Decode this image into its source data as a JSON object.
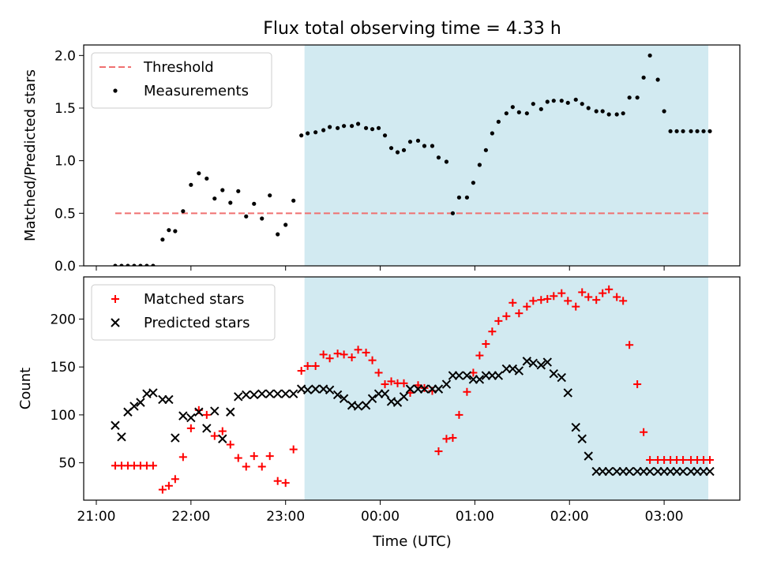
{
  "chart_data": {
    "type": "scatter",
    "title": "Flux total observing time = 4.33 h",
    "xlabel": "Time (UTC)",
    "x_ticks": [
      "21:00",
      "22:00",
      "23:00",
      "00:00",
      "01:00",
      "02:00",
      "03:00"
    ],
    "x_tick_hours": [
      21,
      22,
      23,
      24,
      25,
      26,
      27
    ],
    "xlim": [
      "20:52",
      "03:48"
    ],
    "shaded_region": {
      "start": "23:12",
      "end": "03:28",
      "color": "#add8e6"
    },
    "panels": [
      {
        "ylabel": "Matched/Predicted stars",
        "ylim": [
          0,
          2.1
        ],
        "y_ticks": [
          "0.0",
          "0.5",
          "1.0",
          "1.5",
          "2.0"
        ],
        "legend_position": "upper-left",
        "threshold": {
          "name": "Threshold",
          "value": 0.5,
          "start": "21:12",
          "end": "03:28",
          "color": "#f07070"
        },
        "series": [
          {
            "name": "Measurements",
            "marker": "dot",
            "color": "#000000",
            "x": [
              "21:12",
              "21:16",
              "21:20",
              "21:24",
              "21:28",
              "21:32",
              "21:36",
              "21:42",
              "21:46",
              "21:50",
              "21:55",
              "22:00",
              "22:05",
              "22:10",
              "22:15",
              "22:20",
              "22:25",
              "22:30",
              "22:35",
              "22:40",
              "22:45",
              "22:50",
              "22:55",
              "23:00",
              "23:05",
              "23:10",
              "23:14",
              "23:19",
              "23:24",
              "23:28",
              "23:33",
              "23:37",
              "23:42",
              "23:46",
              "23:51",
              "23:55",
              "23:59",
              "00:03",
              "00:07",
              "00:11",
              "00:15",
              "00:19",
              "00:24",
              "00:28",
              "00:33",
              "00:37",
              "00:42",
              "00:46",
              "00:50",
              "00:55",
              "00:59",
              "01:03",
              "01:07",
              "01:11",
              "01:15",
              "01:20",
              "01:24",
              "01:28",
              "01:33",
              "01:37",
              "01:42",
              "01:46",
              "01:50",
              "01:55",
              "01:59",
              "02:04",
              "02:08",
              "02:12",
              "02:17",
              "02:21",
              "02:25",
              "02:30",
              "02:34",
              "02:38",
              "02:43",
              "02:47",
              "02:51",
              "02:56",
              "03:00",
              "03:04",
              "03:08",
              "03:12",
              "03:17",
              "03:21",
              "03:25",
              "03:29"
            ],
            "y": [
              0.0,
              0.0,
              0.0,
              0.0,
              0.0,
              0.0,
              0.0,
              0.25,
              0.34,
              0.33,
              0.52,
              0.77,
              0.88,
              0.83,
              0.64,
              0.72,
              0.6,
              0.71,
              0.47,
              0.59,
              0.45,
              0.67,
              0.3,
              0.39,
              0.62,
              1.24,
              1.26,
              1.27,
              1.29,
              1.32,
              1.31,
              1.33,
              1.33,
              1.35,
              1.31,
              1.3,
              1.31,
              1.24,
              1.12,
              1.08,
              1.1,
              1.18,
              1.19,
              1.14,
              1.14,
              1.03,
              0.99,
              0.5,
              0.65,
              0.65,
              0.79,
              0.96,
              1.1,
              1.26,
              1.37,
              1.45,
              1.51,
              1.46,
              1.45,
              1.54,
              1.49,
              1.56,
              1.57,
              1.57,
              1.55,
              1.58,
              1.54,
              1.5,
              1.47,
              1.47,
              1.44,
              1.44,
              1.45,
              1.6,
              1.6,
              1.79,
              2.0,
              1.77,
              1.47,
              1.28,
              1.28,
              1.28,
              1.28,
              1.28,
              1.28,
              1.28
            ]
          }
        ]
      },
      {
        "ylabel": "Count",
        "ylim": [
          11,
          244
        ],
        "y_ticks": [
          "50",
          "100",
          "150",
          "200"
        ],
        "legend_position": "upper-left",
        "series": [
          {
            "name": "Matched stars",
            "marker": "plus",
            "color": "#ff0000",
            "x": [
              "21:12",
              "21:16",
              "21:20",
              "21:24",
              "21:28",
              "21:32",
              "21:36",
              "21:42",
              "21:46",
              "21:50",
              "21:55",
              "22:00",
              "22:05",
              "22:10",
              "22:15",
              "22:20",
              "22:25",
              "22:30",
              "22:35",
              "22:40",
              "22:45",
              "22:50",
              "22:55",
              "23:00",
              "23:05",
              "23:10",
              "23:14",
              "23:19",
              "23:24",
              "23:28",
              "23:33",
              "23:37",
              "23:42",
              "23:46",
              "23:51",
              "23:55",
              "23:59",
              "00:03",
              "00:07",
              "00:11",
              "00:15",
              "00:19",
              "00:24",
              "00:28",
              "00:33",
              "00:37",
              "00:42",
              "00:46",
              "00:50",
              "00:55",
              "00:59",
              "01:03",
              "01:07",
              "01:11",
              "01:15",
              "01:20",
              "01:24",
              "01:28",
              "01:33",
              "01:37",
              "01:42",
              "01:46",
              "01:50",
              "01:55",
              "01:59",
              "02:04",
              "02:08",
              "02:12",
              "02:17",
              "02:21",
              "02:25",
              "02:30",
              "02:34",
              "02:38",
              "02:43",
              "02:47",
              "02:51",
              "02:56",
              "03:00",
              "03:04",
              "03:08",
              "03:12",
              "03:17",
              "03:21",
              "03:25",
              "03:29"
            ],
            "y": [
              47,
              47,
              47,
              47,
              47,
              47,
              47,
              22,
              26,
              33,
              56,
              86,
              105,
              100,
              78,
              83,
              69,
              55,
              46,
              57,
              46,
              57,
              31,
              29,
              64,
              146,
              151,
              151,
              163,
              159,
              164,
              163,
              160,
              168,
              165,
              157,
              144,
              132,
              135,
              133,
              133,
              123,
              131,
              128,
              125,
              62,
              75,
              76,
              100,
              124,
              144,
              162,
              174,
              187,
              198,
              203,
              217,
              206,
              213,
              219,
              220,
              221,
              224,
              227,
              219,
              213,
              228,
              223,
              220,
              227,
              231,
              223,
              219,
              173,
              132,
              82,
              53,
              53,
              53,
              53,
              53,
              53,
              53,
              53,
              53,
              53
            ]
          },
          {
            "name": "Predicted stars",
            "marker": "x",
            "color": "#000000",
            "x": [
              "21:12",
              "21:16",
              "21:20",
              "21:24",
              "21:28",
              "21:32",
              "21:36",
              "21:42",
              "21:46",
              "21:50",
              "21:55",
              "22:00",
              "22:05",
              "22:10",
              "22:15",
              "22:20",
              "22:25",
              "22:30",
              "22:35",
              "22:40",
              "22:45",
              "22:50",
              "22:55",
              "23:00",
              "23:05",
              "23:10",
              "23:14",
              "23:19",
              "23:24",
              "23:28",
              "23:33",
              "23:37",
              "23:42",
              "23:46",
              "23:51",
              "23:55",
              "23:59",
              "00:03",
              "00:07",
              "00:11",
              "00:15",
              "00:19",
              "00:24",
              "00:28",
              "00:33",
              "00:37",
              "00:42",
              "00:46",
              "00:50",
              "00:55",
              "00:59",
              "01:03",
              "01:07",
              "01:11",
              "01:15",
              "01:20",
              "01:24",
              "01:28",
              "01:33",
              "01:37",
              "01:42",
              "01:46",
              "01:50",
              "01:55",
              "01:59",
              "02:04",
              "02:08",
              "02:12",
              "02:17",
              "02:21",
              "02:25",
              "02:30",
              "02:34",
              "02:38",
              "02:43",
              "02:47",
              "02:51",
              "02:56",
              "03:00",
              "03:04",
              "03:08",
              "03:12",
              "03:17",
              "03:21",
              "03:25",
              "03:29"
            ],
            "y": [
              89,
              77,
              103,
              109,
              113,
              122,
              123,
              116,
              116,
              76,
              99,
              97,
              103,
              86,
              104,
              75,
              103,
              119,
              121,
              121,
              122,
              122,
              122,
              122,
              122,
              127,
              126,
              127,
              127,
              126,
              121,
              117,
              110,
              109,
              110,
              117,
              122,
              122,
              114,
              113,
              119,
              127,
              127,
              127,
              127,
              127,
              132,
              141,
              141,
              141,
              137,
              137,
              141,
              141,
              141,
              148,
              148,
              146,
              156,
              154,
              152,
              155,
              143,
              139,
              123,
              87,
              75,
              57,
              41,
              41,
              41,
              41,
              41,
              41,
              41,
              41,
              41,
              41,
              41,
              41,
              41,
              41,
              41,
              41,
              41,
              41
            ]
          }
        ]
      }
    ]
  }
}
